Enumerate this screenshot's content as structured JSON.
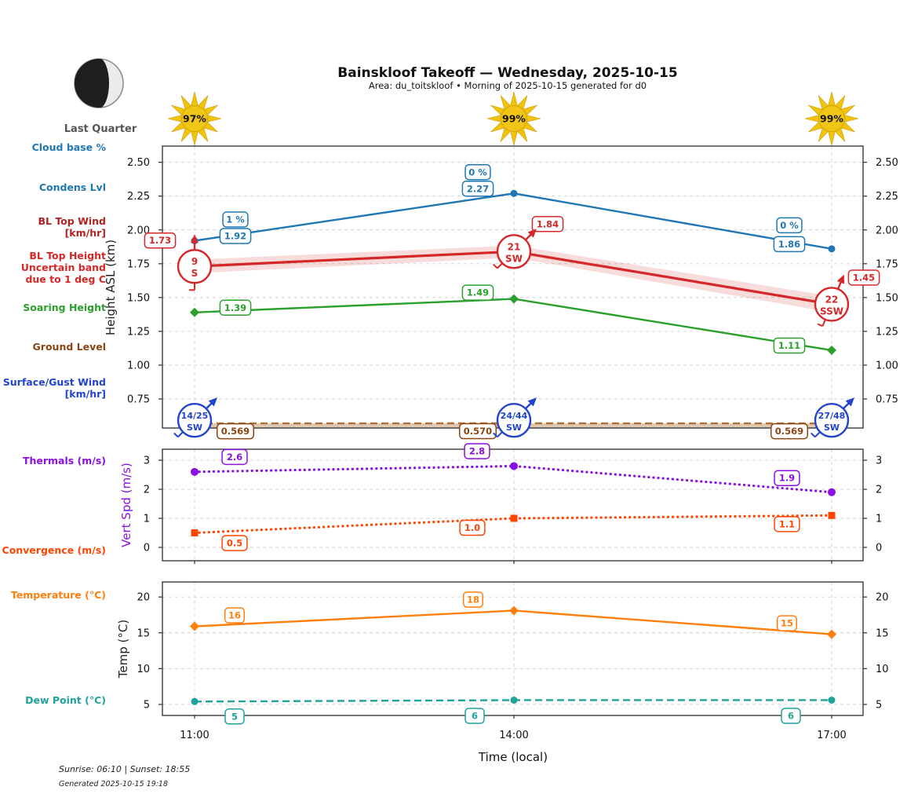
{
  "header": {
    "title": "Bainskloof Takeoff — Wednesday, 2025-10-15",
    "subtitle": "Area: du_toitskloof • Morning of 2025-10-15 generated for d0"
  },
  "moon": {
    "phase_label": "Last Quarter"
  },
  "suns": [
    {
      "pct": "97%"
    },
    {
      "pct": "99%"
    },
    {
      "pct": "99%"
    }
  ],
  "row_labels": {
    "cloud_base": "Cloud base %",
    "condens": "Condens Lvl",
    "bl_top_wind_1": "BL Top Wind",
    "bl_top_wind_2": "[km/hr]",
    "bl_top_height_1": "BL Top Height",
    "bl_top_height_2": "Uncertain band",
    "bl_top_height_3": "due to 1 deg C",
    "soaring": "Soaring Height",
    "ground": "Ground Level",
    "surface_wind_1": "Surface/Gust Wind",
    "surface_wind_2": "[km/hr]",
    "thermals": "Thermals (m/s)",
    "convergence": "Convergence (m/s)",
    "temperature": "Temperature (°C)",
    "dew_point": "Dew Point (°C)"
  },
  "axes": {
    "height_label": "Height ASL (km)",
    "vert_label": "Vert Spd (m/s)",
    "temp_label": "Temp (°C)",
    "time_label": "Time (local)"
  },
  "footer": {
    "sun_times": "Sunrise: 06:10 | Sunset: 18:55",
    "generated": "Generated 2025-10-15 19:18"
  },
  "chart_data": [
    {
      "type": "line",
      "panel": "heights",
      "ylabel": "Height ASL (km)",
      "x_categories": [
        "11:00",
        "14:00",
        "17:00"
      ],
      "ylim": [
        0.535,
        2.62
      ],
      "yticks": [
        0.75,
        1.0,
        1.25,
        1.5,
        1.75,
        2.0,
        2.25,
        2.5
      ],
      "ytick_labels": [
        "0.75",
        "1.00",
        "1.25",
        "1.50",
        "1.75",
        "2.00",
        "2.25",
        "2.50"
      ],
      "grid": true,
      "series": [
        {
          "name": "Condens Lvl",
          "color": "#1f77b4",
          "linestyle": "solid",
          "marker": "circle",
          "values": [
            1.92,
            2.27,
            1.86
          ],
          "value_labels": [
            "1.92",
            "2.27",
            "1.86"
          ],
          "cloud_base_labels": [
            "1 %",
            "0 %",
            "0 %"
          ]
        },
        {
          "name": "BL Top Height",
          "color": "#d62728",
          "linestyle": "solid",
          "marker": "none",
          "values": [
            1.73,
            1.84,
            1.45
          ],
          "value_labels": [
            "1.73",
            "1.84",
            "1.45"
          ],
          "uncertainty_band": [
            0.05,
            0.045,
            0.06
          ],
          "bl_top_wind": [
            {
              "speed_kmh": "9",
              "dir": "S"
            },
            {
              "speed_kmh": "21",
              "dir": "SW"
            },
            {
              "speed_kmh": "22",
              "dir": "SSW"
            }
          ]
        },
        {
          "name": "Soaring Height",
          "color": "#2ca02c",
          "linestyle": "solid",
          "marker": "diamond",
          "values": [
            1.39,
            1.49,
            1.11
          ],
          "value_labels": [
            "1.39",
            "1.49",
            "1.11"
          ]
        },
        {
          "name": "Ground Level",
          "color": "#a9713b",
          "label_color": "#8B4513",
          "linestyle": "dashed",
          "marker": "none",
          "values": [
            0.569,
            0.57,
            0.569
          ],
          "value_labels": [
            "0.569",
            "0.570",
            "0.569"
          ],
          "fill_below": "rgba(196,154,108,0.55)"
        }
      ],
      "surface_gust_wind": {
        "color": "#2244cc",
        "points": [
          {
            "speed_kmh": "14/25",
            "dir": "SW"
          },
          {
            "speed_kmh": "24/44",
            "dir": "SW"
          },
          {
            "speed_kmh": "27/48",
            "dir": "SW"
          }
        ]
      }
    },
    {
      "type": "line",
      "panel": "vert_speed",
      "ylabel": "Vert Spd (m/s)",
      "x_categories": [
        "11:00",
        "14:00",
        "17:00"
      ],
      "ylim": [
        -0.46,
        3.38
      ],
      "yticks": [
        0,
        1,
        2,
        3
      ],
      "ytick_labels": [
        "0",
        "1",
        "2",
        "3"
      ],
      "grid": true,
      "series": [
        {
          "name": "Thermals",
          "color": "#8a0fe0",
          "linestyle": "dotted",
          "marker": "circle",
          "values": [
            2.6,
            2.8,
            1.9
          ],
          "value_labels": [
            "2.6",
            "2.8",
            "1.9"
          ],
          "label_side": "above"
        },
        {
          "name": "Convergence",
          "color": "#ff4500",
          "linestyle": "dotted",
          "marker": "square",
          "values": [
            0.5,
            1.0,
            1.1
          ],
          "value_labels": [
            "0.5",
            "1.0",
            "1.1"
          ],
          "label_side": "below"
        }
      ]
    },
    {
      "type": "line",
      "panel": "temp",
      "ylabel": "Temp (°C)",
      "xlabel": "Time (local)",
      "x_categories": [
        "11:00",
        "14:00",
        "17:00"
      ],
      "ylim": [
        3.46,
        22.1
      ],
      "yticks": [
        5,
        10,
        15,
        20
      ],
      "ytick_labels": [
        "5",
        "10",
        "15",
        "20"
      ],
      "grid": true,
      "series": [
        {
          "name": "Temperature",
          "color": "#ff7f0e",
          "linestyle": "solid",
          "marker": "diamond",
          "values": [
            15.9,
            18.1,
            14.8
          ],
          "value_labels": [
            "16",
            "18",
            "15"
          ],
          "label_side": "above"
        },
        {
          "name": "Dew Point",
          "color": "#1fa39b",
          "linestyle": "dashed",
          "marker": "circle",
          "values": [
            5.4,
            5.6,
            5.6
          ],
          "value_labels": [
            "5",
            "6",
            "6"
          ],
          "label_side": "below"
        }
      ]
    }
  ]
}
